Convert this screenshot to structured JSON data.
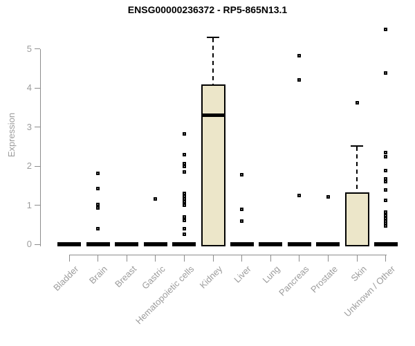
{
  "colors": {
    "background": "#ffffff",
    "title": "#000000",
    "axis_line": "#8c8c8c",
    "axis_label": "#9c9c9c",
    "box_fill": "#ece6c9",
    "box_border": "#000000",
    "median": "#000000",
    "outlier": "#000000"
  },
  "chart_data": {
    "type": "boxplot",
    "title": "ENSG00000236372 - RP5-865N13.1",
    "ylabel": "Expression",
    "xlabel": "",
    "ylim": [
      0,
      5.5
    ],
    "yticks": [
      0,
      1,
      2,
      3,
      4,
      5
    ],
    "grid": false,
    "legend": "none",
    "categories": [
      "Bladder",
      "Brain",
      "Breast",
      "Gastric",
      "Hematopoietic cells",
      "Kidney",
      "Liver",
      "Lung",
      "Pancreas",
      "Prostate",
      "Skin",
      "Unknown / Other"
    ],
    "series": [
      {
        "category": "Bladder",
        "q1": 0,
        "median": 0,
        "q3": 0,
        "whisker_low": 0,
        "whisker_high": 0,
        "outliers": []
      },
      {
        "category": "Brain",
        "q1": 0,
        "median": 0,
        "q3": 0,
        "whisker_low": 0,
        "whisker_high": 0,
        "outliers": [
          1.82,
          1.43,
          1.02,
          0.94,
          0.41
        ]
      },
      {
        "category": "Breast",
        "q1": 0,
        "median": 0,
        "q3": 0,
        "whisker_low": 0,
        "whisker_high": 0,
        "outliers": []
      },
      {
        "category": "Gastric",
        "q1": 0,
        "median": 0,
        "q3": 0,
        "whisker_low": 0,
        "whisker_high": 0,
        "outliers": [
          1.17
        ]
      },
      {
        "category": "Hematopoietic cells",
        "q1": 0,
        "median": 0,
        "q3": 0,
        "whisker_low": 0,
        "whisker_high": 0,
        "outliers": [
          2.83,
          2.3,
          2.07,
          1.99,
          1.86,
          1.3,
          1.23,
          1.16,
          1.09,
          1.01,
          0.71,
          0.62,
          0.41,
          0.27
        ]
      },
      {
        "category": "Kidney",
        "q1": 0,
        "median": 3.3,
        "q3": 4.1,
        "whisker_low": 0,
        "whisker_high": 5.3,
        "outliers": []
      },
      {
        "category": "Liver",
        "q1": 0,
        "median": 0,
        "q3": 0,
        "whisker_low": 0,
        "whisker_high": 0,
        "outliers": [
          1.78,
          0.9,
          0.59
        ]
      },
      {
        "category": "Lung",
        "q1": 0,
        "median": 0,
        "q3": 0,
        "whisker_low": 0,
        "whisker_high": 0,
        "outliers": []
      },
      {
        "category": "Pancreas",
        "q1": 0,
        "median": 0,
        "q3": 0,
        "whisker_low": 0,
        "whisker_high": 0,
        "outliers": [
          4.82,
          4.2,
          1.25
        ]
      },
      {
        "category": "Prostate",
        "q1": 0,
        "median": 0,
        "q3": 0,
        "whisker_low": 0,
        "whisker_high": 0,
        "outliers": [
          1.21
        ]
      },
      {
        "category": "Skin",
        "q1": 0,
        "median": 0,
        "q3": 1.33,
        "whisker_low": 0,
        "whisker_high": 2.52,
        "outliers": [
          3.63
        ]
      },
      {
        "category": "Unknown / Other",
        "q1": 0,
        "median": 0,
        "q3": 0,
        "whisker_low": 0,
        "whisker_high": 0,
        "outliers": [
          5.5,
          4.38,
          2.35,
          2.25,
          1.89,
          1.68,
          1.6,
          1.39,
          1.13,
          0.82,
          0.74,
          0.66,
          0.6,
          0.54,
          0.47
        ]
      }
    ]
  }
}
